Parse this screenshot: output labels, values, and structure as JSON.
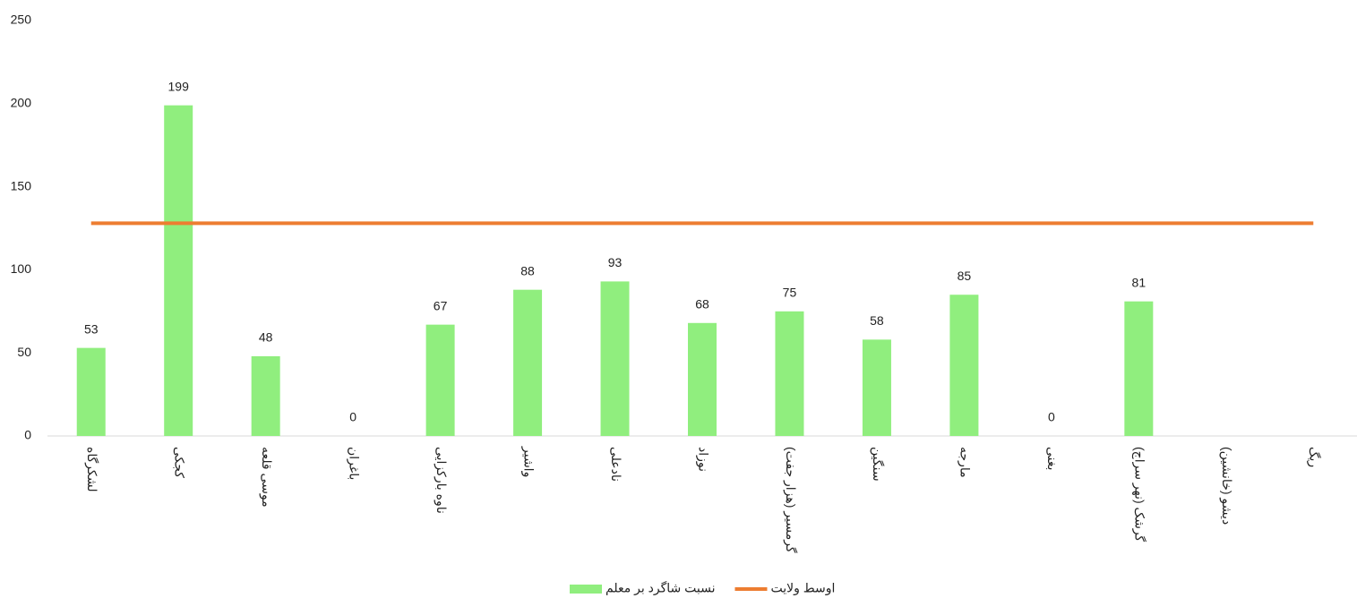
{
  "chart_data": {
    "type": "bar",
    "categories": [
      "لشکرگاه",
      "کجکی",
      "موسی قلعه",
      "باغران",
      "ناوه بارکزایی",
      "واشیر",
      "نادعلی",
      "نوزاد",
      "گرمسیر (هزار جفت)",
      "سنگین",
      "مارجه",
      "بغنی",
      "گرشک (نهر سراج)",
      "دیشو (خانشین)",
      "ریگ"
    ],
    "series": [
      {
        "name": "نسبت شاگرد بر معلم",
        "type": "bar",
        "color": "#90ee7e",
        "values": [
          53,
          199,
          48,
          0,
          67,
          88,
          93,
          68,
          75,
          58,
          85,
          0,
          81,
          null,
          null
        ]
      },
      {
        "name": "اوسط ولایت",
        "type": "line",
        "color": "#ed7d31",
        "values": [
          128,
          128,
          128,
          128,
          128,
          128,
          128,
          128,
          128,
          128,
          128,
          128,
          128,
          128,
          128
        ]
      }
    ],
    "ylim": [
      0,
      250
    ],
    "yticks": [
      0,
      50,
      100,
      150,
      200,
      250
    ],
    "grid": false,
    "legend": "bottom"
  }
}
